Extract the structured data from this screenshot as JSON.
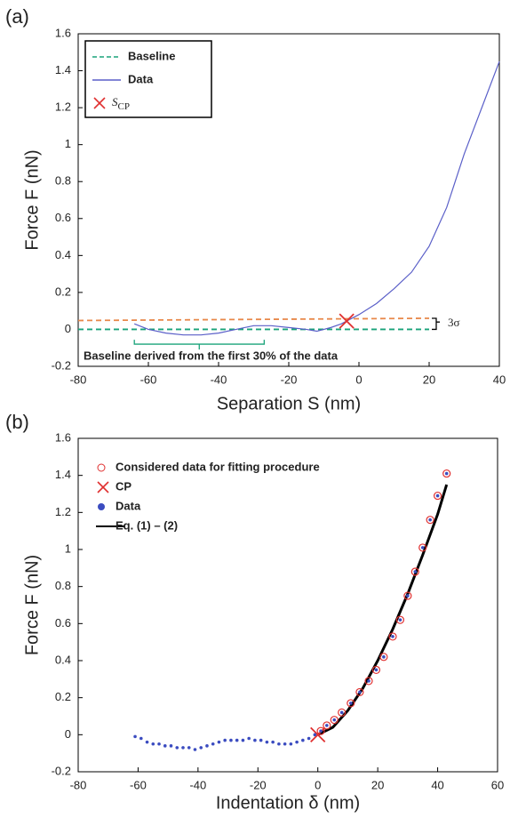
{
  "chart_data": [
    {
      "type": "line",
      "panel_label": "(a)",
      "x_label": "Separation S (nm)",
      "y_label": "Force  F (nN)",
      "xlim": [
        -80,
        40
      ],
      "xticks": [
        -80,
        -60,
        -40,
        -20,
        0,
        20,
        40
      ],
      "ylim": [
        -0.2,
        1.6
      ],
      "yticks": [
        -0.2,
        0,
        0.2,
        0.4,
        0.6,
        0.8,
        1,
        1.2,
        1.4,
        1.6
      ],
      "legend": "upper left",
      "series": [
        {
          "name": "Baseline",
          "color": "#1aa37a",
          "style": "dashed",
          "x": [
            -80,
            20
          ],
          "values": [
            0,
            0
          ]
        },
        {
          "name": "Data",
          "color": "#5a5fc8",
          "style": "line",
          "x": [
            -64,
            -60,
            -55,
            -50,
            -45,
            -40,
            -35,
            -30,
            -25,
            -20,
            -15,
            -12,
            -8,
            -5,
            -3,
            0,
            5,
            10,
            15,
            20,
            25,
            30,
            35,
            40
          ],
          "values": [
            0.03,
            0.0,
            -0.02,
            -0.03,
            -0.03,
            -0.02,
            0.0,
            0.02,
            0.02,
            0.01,
            0.0,
            -0.01,
            0.01,
            0.03,
            0.05,
            0.08,
            0.14,
            0.22,
            0.31,
            0.45,
            0.66,
            0.95,
            1.2,
            1.45
          ]
        },
        {
          "name": "SCP",
          "color": "#e03030",
          "style": "cross",
          "x": [
            -3.5
          ],
          "values": [
            0.045
          ]
        },
        {
          "color": "#e8884a",
          "style": "dashed",
          "x": [
            -80,
            20
          ],
          "values": [
            0.048,
            0.06
          ]
        }
      ],
      "annotations": [
        {
          "text": "3σ"
        },
        {
          "text": "Baseline derived from the first 30% of the data"
        }
      ]
    },
    {
      "type": "scatter",
      "panel_label": "(b)",
      "x_label": "Indentation δ (nm)",
      "y_label": "Force  F (nN)",
      "xlim": [
        -80,
        60
      ],
      "xticks": [
        -80,
        -60,
        -40,
        -20,
        0,
        20,
        40,
        60
      ],
      "ylim": [
        -0.2,
        1.6
      ],
      "yticks": [
        -0.2,
        0,
        0.2,
        0.4,
        0.6,
        0.8,
        1,
        1.2,
        1.4,
        1.6
      ],
      "legend": "upper left",
      "series": [
        {
          "name": "Considered data for fitting procedure",
          "color": "#e03030",
          "style": "circle",
          "x": [
            1,
            3,
            5.5,
            8,
            11,
            14,
            17,
            19.5,
            22,
            25,
            27.5,
            30,
            32.5,
            35,
            37.5,
            40,
            43
          ],
          "values": [
            0.02,
            0.05,
            0.08,
            0.12,
            0.17,
            0.23,
            0.29,
            0.35,
            0.42,
            0.53,
            0.62,
            0.75,
            0.88,
            1.01,
            1.16,
            1.29,
            1.41
          ]
        },
        {
          "name": "CP",
          "color": "#e03030",
          "style": "cross",
          "x": [
            0
          ],
          "values": [
            0
          ]
        },
        {
          "name": "Data",
          "color": "#3b4cc0",
          "style": "dot",
          "x": [
            -61,
            -59,
            -57,
            -55,
            -53,
            -51,
            -49,
            -47,
            -45,
            -43,
            -41,
            -39,
            -37,
            -35,
            -33,
            -31,
            -29,
            -27,
            -25,
            -23,
            -21,
            -19,
            -17,
            -15,
            -13,
            -11,
            -9,
            -7,
            -5,
            -3,
            -1,
            1,
            3,
            5.5,
            8,
            11,
            14,
            17,
            19.5,
            22,
            25,
            27.5,
            30,
            32.5,
            35,
            37.5,
            40,
            43
          ],
          "values": [
            -0.01,
            -0.02,
            -0.04,
            -0.05,
            -0.05,
            -0.06,
            -0.06,
            -0.07,
            -0.07,
            -0.07,
            -0.08,
            -0.07,
            -0.06,
            -0.05,
            -0.04,
            -0.03,
            -0.03,
            -0.03,
            -0.03,
            -0.02,
            -0.03,
            -0.03,
            -0.04,
            -0.04,
            -0.05,
            -0.05,
            -0.05,
            -0.04,
            -0.03,
            -0.02,
            0.0,
            0.02,
            0.05,
            0.08,
            0.12,
            0.17,
            0.23,
            0.29,
            0.35,
            0.42,
            0.53,
            0.62,
            0.75,
            0.88,
            1.01,
            1.16,
            1.29,
            1.41
          ]
        },
        {
          "name": "Eq. (1) – (2)",
          "color": "#000000",
          "style": "thick",
          "x": [
            0,
            5,
            10,
            15,
            20,
            25,
            30,
            35,
            40,
            43
          ],
          "values": [
            0,
            0.04,
            0.13,
            0.25,
            0.4,
            0.57,
            0.76,
            0.97,
            1.19,
            1.35
          ]
        }
      ]
    }
  ]
}
